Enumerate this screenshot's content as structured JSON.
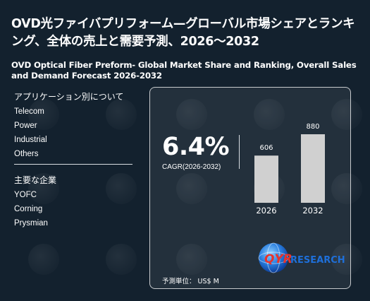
{
  "header": {
    "title_jp": "OVD光ファイバプリフォーム—グローバル市場シェアとランキング、全体の売上と需要予測、2026～2032",
    "title_en": "OVD Optical Fiber Preform- Global Market Share and Ranking, Overall Sales and Demand Forecast 2026-2032"
  },
  "applications": {
    "heading": "アプリケーション別について",
    "items": [
      "Telecom",
      "Power",
      "Industrial",
      "Others"
    ]
  },
  "companies": {
    "heading": "主要な企業",
    "items": [
      "YOFC",
      "Corning",
      "Prysmian"
    ]
  },
  "stats": {
    "cagr_value": "6.4%",
    "cagr_label": "CAGR(2026-2032)",
    "unit_label": "予測単位： US$ M"
  },
  "chart_data": {
    "type": "bar",
    "categories": [
      "2026",
      "2032"
    ],
    "values": [
      606,
      880
    ],
    "ylim": [
      0,
      880
    ],
    "bar_color": "#d0d0d0",
    "grid": false
  },
  "logo": {
    "text_mark": "QYR",
    "text_rest": "RESEARCH",
    "colors": {
      "mark": "#e8332a",
      "globe": "#1e6fd9",
      "rest": "#1e6fd9"
    }
  }
}
